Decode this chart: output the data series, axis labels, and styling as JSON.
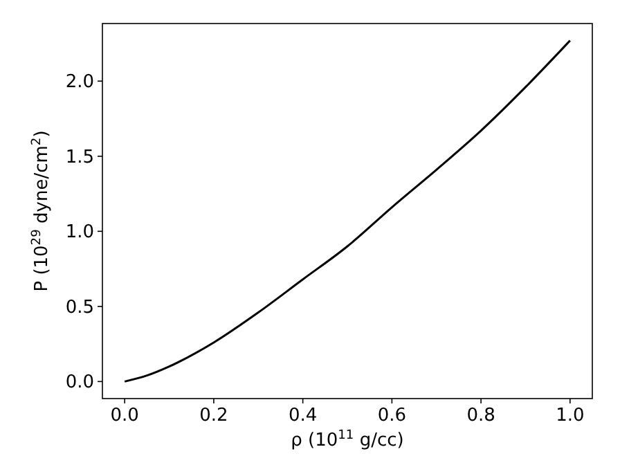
{
  "chart_data": {
    "type": "line",
    "xlabel": "ρ (10$^{11}$ g/cc)",
    "ylabel": "P (10$^{29}$ dyne/cm$^{2}$)",
    "x": [
      0,
      0.05,
      0.1,
      0.2,
      0.3,
      0.4,
      0.5,
      0.6,
      0.7,
      0.8,
      0.9,
      1.0
    ],
    "series": [
      {
        "color": "#000000",
        "values": [
          0,
          0.04,
          0.1,
          0.26,
          0.46,
          0.68,
          0.9,
          1.16,
          1.41,
          1.67,
          1.96,
          2.27
        ]
      }
    ],
    "xlim": [
      -0.05,
      1.05
    ],
    "ylim": [
      -0.1135,
      2.3835
    ],
    "xticks": [
      {
        "value": 0,
        "label": "0.0"
      },
      {
        "value": 0.2,
        "label": "0.2"
      },
      {
        "value": 0.4,
        "label": "0.4"
      },
      {
        "value": 0.6,
        "label": "0.6"
      },
      {
        "value": 0.8,
        "label": "0.8"
      },
      {
        "value": 1,
        "label": "1.0"
      }
    ],
    "yticks": [
      {
        "value": 0,
        "label": "0.0"
      },
      {
        "value": 0.5,
        "label": "0.5"
      },
      {
        "value": 1,
        "label": "1.0"
      },
      {
        "value": 1.5,
        "label": "1.5"
      },
      {
        "value": 2,
        "label": "2.0"
      }
    ],
    "marker": "none",
    "line_style": "solid"
  }
}
